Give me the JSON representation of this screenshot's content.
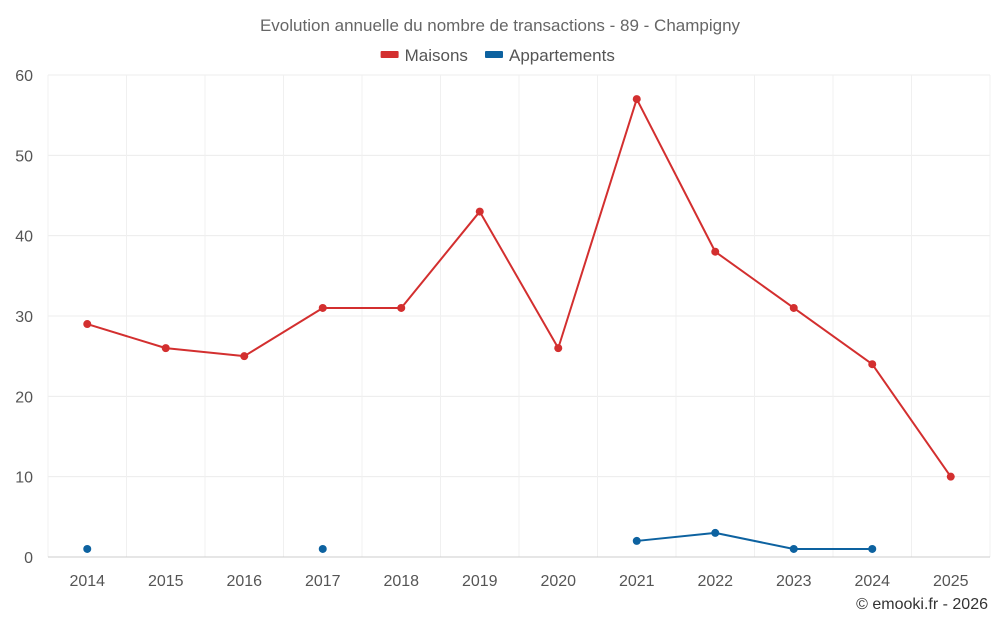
{
  "chart_data": {
    "type": "line",
    "title": "Evolution annuelle du nombre de transactions - 89 - Champigny",
    "categories": [
      "2014",
      "2015",
      "2016",
      "2017",
      "2018",
      "2019",
      "2020",
      "2021",
      "2022",
      "2023",
      "2024",
      "2025"
    ],
    "ylim": [
      0,
      60
    ],
    "yticks": [
      0,
      10,
      20,
      30,
      40,
      50,
      60
    ],
    "grid": true,
    "legend_position": "top-center",
    "series": [
      {
        "name": "Maisons",
        "color": "#d32f2f",
        "values": [
          29,
          26,
          25,
          31,
          31,
          43,
          26,
          57,
          38,
          31,
          24,
          10
        ]
      },
      {
        "name": "Appartements",
        "color": "#0d62a0",
        "values": [
          1,
          null,
          null,
          1,
          null,
          null,
          null,
          2,
          3,
          1,
          1,
          null
        ]
      }
    ],
    "credit": "© emooki.fr - 2026"
  }
}
